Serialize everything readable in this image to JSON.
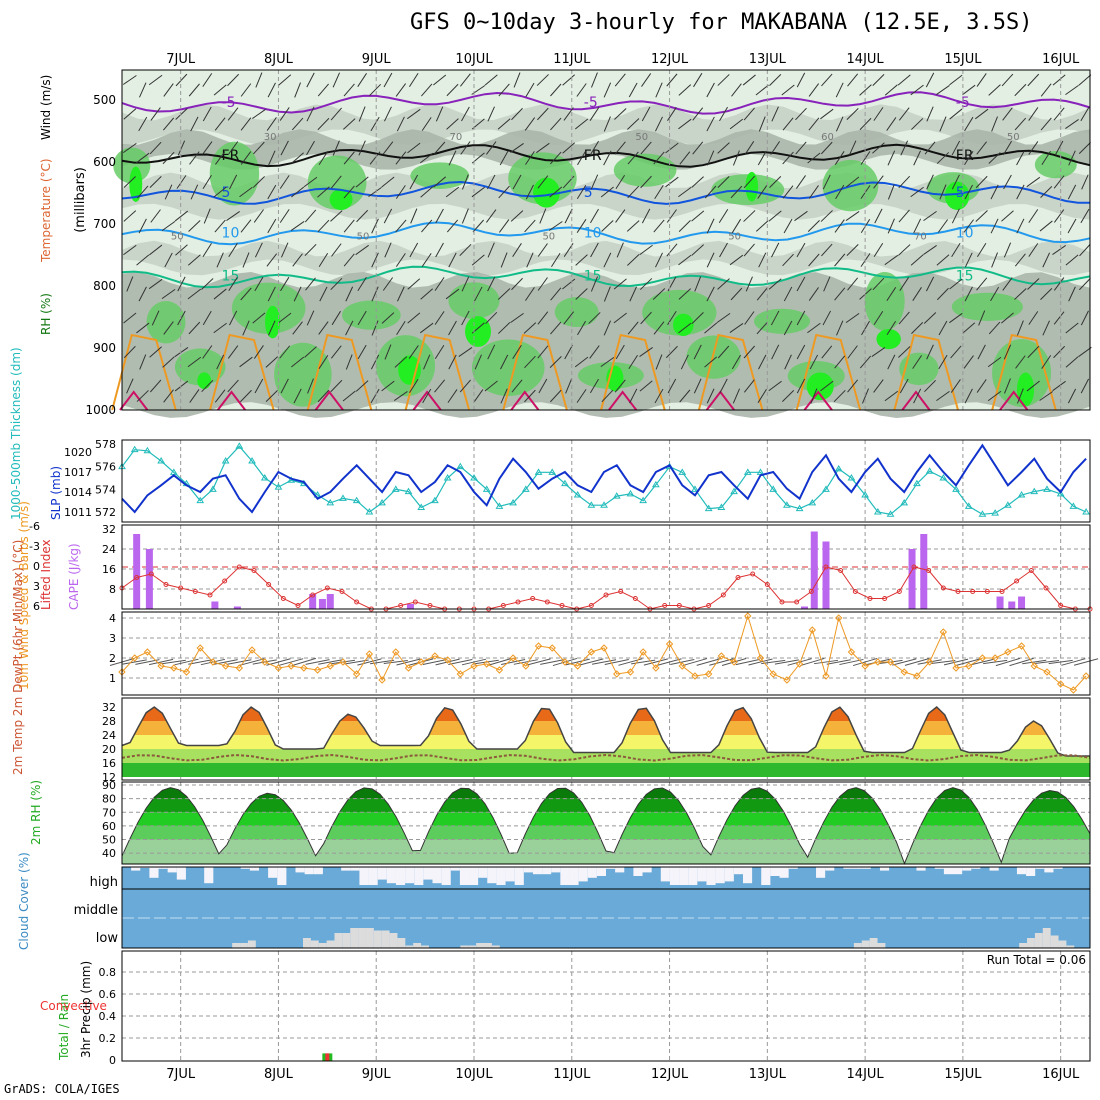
{
  "title": "GFS 0~10day 3-hourly for MAKABANA (12.5E, 3.5S)",
  "credit": "GrADS: COLA/IGES",
  "colors": {
    "rh_light": "#e2efe2",
    "rh_mid": "#c8d2c8",
    "rh_dark": "#abb6ab",
    "rh_green": "#66cc66",
    "rh_bright": "#22ee22",
    "temp_neg": "#8822bb",
    "temp_freeze": "#111111",
    "temp_5": "#1155dd",
    "temp_10": "#2299ee",
    "temp_15": "#11bb88",
    "temp_20": "#ee9922",
    "temp_25": "#cc1166",
    "slp": "#1133cc",
    "thickness": "#22bbbb",
    "cape": "#bb66ee",
    "li": "#dd3333",
    "wind": "#ee9922",
    "cloud": "#6aaad8",
    "cloud_gap": "#f6f4fb",
    "cloud_low": "#dcdcdc",
    "precip_rain": "#22bb22",
    "precip_conv": "#ee3333",
    "rh2m": "#22aa22"
  },
  "chart_data": [
    {
      "type": "contour",
      "panel": "upper-air",
      "x_ticks": [
        "7JUL",
        "8JUL",
        "9JUL",
        "10JUL",
        "11JUL",
        "12JUL",
        "13JUL",
        "14JUL",
        "15JUL",
        "16JUL"
      ],
      "ylabel": "(millibars)",
      "side_labels": [
        "RH (%)",
        "Temperature (°C)",
        "Wind (m/s)"
      ],
      "y_ticks": [
        500,
        600,
        700,
        800,
        900,
        1000
      ],
      "ylim": [
        1000,
        450
      ],
      "isotherms": [
        {
          "label": "-5",
          "value": -5,
          "color": "#8822bb",
          "level": 505
        },
        {
          "label": "FR",
          "value": 0,
          "color": "#111111",
          "level": 590
        },
        {
          "label": "5",
          "value": 5,
          "color": "#1155dd",
          "level": 650
        },
        {
          "label": "10",
          "value": 10,
          "color": "#2299ee",
          "level": 715
        },
        {
          "label": "15",
          "value": 15,
          "color": "#11bb88",
          "level": 785
        }
      ],
      "rh_labels": [
        "50",
        "30",
        "50",
        "70",
        "50",
        "50",
        "50",
        "60",
        "70",
        "50"
      ]
    },
    {
      "type": "line",
      "panel": "slp-thickness",
      "x": [
        6.4,
        6.53,
        6.66,
        6.8,
        6.93,
        7.06,
        7.2,
        7.33,
        7.46,
        7.6,
        7.73,
        7.86,
        8.0,
        8.13,
        8.26,
        8.4,
        8.53,
        8.66,
        8.8,
        8.93,
        9.06,
        9.2,
        9.33,
        9.46,
        9.6,
        9.73,
        9.86,
        10.0,
        10.13,
        10.26,
        10.4,
        10.53,
        10.66,
        10.8,
        10.93,
        11.06,
        11.2,
        11.33,
        11.46,
        11.6,
        11.73,
        11.86,
        12.0,
        12.13,
        12.26,
        12.4,
        12.53,
        12.66,
        12.8,
        12.93,
        13.06,
        13.2,
        13.33,
        13.46,
        13.6,
        13.73,
        13.86,
        14.0,
        14.13,
        14.26,
        14.4,
        14.53,
        14.66,
        14.8,
        14.93,
        15.06,
        15.2,
        15.33,
        15.46,
        15.6,
        15.73,
        15.86,
        16.0,
        16.13,
        16.26
      ],
      "series": [
        {
          "name": "SLP (mb)",
          "axis": "right",
          "values": [
            1013,
            1011,
            1013.5,
            1015,
            1016.5,
            1015,
            1014,
            1016,
            1016.5,
            1013,
            1011,
            1014,
            1017,
            1016,
            1015.5,
            1013,
            1014,
            1016,
            1018,
            1016,
            1014,
            1017,
            1016.5,
            1014,
            1015.5,
            1018,
            1017,
            1014,
            1012,
            1016,
            1019,
            1017,
            1014.5,
            1016,
            1017,
            1015,
            1014,
            1017,
            1018,
            1015,
            1014,
            1017,
            1018,
            1015,
            1013.5,
            1016.5,
            1017,
            1015,
            1013,
            1016.5,
            1017,
            1014.5,
            1013,
            1017,
            1019.5,
            1016,
            1014,
            1017,
            1019,
            1016,
            1014,
            1017,
            1019.5,
            1017,
            1015,
            1018,
            1021,
            1018,
            1015,
            1017,
            1019,
            1016,
            1014,
            1017,
            1019
          ]
        },
        {
          "name": "1000-500mb Thickness (dm)",
          "axis": "left",
          "values": [
            576,
            577.5,
            577.4,
            576.5,
            575.5,
            574.5,
            573,
            574,
            576.5,
            577.8,
            576.5,
            575,
            574.2,
            574.8,
            574.5,
            573.5,
            572.8,
            573.2,
            573,
            572,
            572.8,
            574,
            573.8,
            572.4,
            573,
            575,
            576,
            575,
            574,
            572.5,
            572.8,
            574,
            575.5,
            575.5,
            574.5,
            573.5,
            572.6,
            572.6,
            573.4,
            573.6,
            573,
            574.4,
            576,
            575.5,
            574,
            572.3,
            572.4,
            573.8,
            575.5,
            575.5,
            574,
            572.6,
            572.3,
            572.8,
            574,
            575.8,
            575,
            573.5,
            572,
            571.8,
            572.8,
            574.5,
            575.6,
            575,
            574,
            572.5,
            571.8,
            571.9,
            572.6,
            573.5,
            573.8,
            574,
            573.6,
            572.5,
            572
          ]
        }
      ],
      "y_left_ticks": [
        572,
        574,
        576,
        578
      ],
      "y_right_ticks": [
        1011,
        1014,
        1017,
        1020
      ],
      "ylabel_left": "1000-500mb Thickness (dm)",
      "ylabel_right": "SLP (mb)"
    },
    {
      "type": "bar",
      "panel": "cape-li",
      "ylabel_left": "Lifted Index",
      "ylabel_right": "CAPE (J/kg)",
      "y_left_ticks": [
        "-6",
        "-3",
        "0",
        "3",
        "6"
      ],
      "y_right_ticks": [
        "8",
        "16",
        "24",
        "32"
      ],
      "cape": [
        {
          "day": 6.55,
          "value": 30
        },
        {
          "day": 6.68,
          "value": 24
        },
        {
          "day": 7.35,
          "value": 3
        },
        {
          "day": 7.58,
          "value": 1
        },
        {
          "day": 8.35,
          "value": 6
        },
        {
          "day": 8.45,
          "value": 4
        },
        {
          "day": 8.53,
          "value": 6
        },
        {
          "day": 9.35,
          "value": 2
        },
        {
          "day": 13.38,
          "value": 1
        },
        {
          "day": 13.48,
          "value": 31
        },
        {
          "day": 13.6,
          "value": 27
        },
        {
          "day": 14.48,
          "value": 24
        },
        {
          "day": 14.6,
          "value": 30
        },
        {
          "day": 15.38,
          "value": 5
        },
        {
          "day": 15.5,
          "value": 3
        },
        {
          "day": 15.6,
          "value": 5
        }
      ],
      "lifted_index_x": [
        6.4,
        6.55,
        6.7,
        6.85,
        7.0,
        7.15,
        7.3,
        7.45,
        7.6,
        7.75,
        7.9,
        8.05,
        8.2,
        8.35,
        8.5,
        8.65,
        8.8,
        8.95,
        9.1,
        9.25,
        9.4,
        9.55,
        9.7,
        9.85,
        10.0,
        10.15,
        10.3,
        10.45,
        10.6,
        10.75,
        10.9,
        11.05,
        11.2,
        11.35,
        11.5,
        11.65,
        11.8,
        11.95,
        12.1,
        12.25,
        12.4,
        12.55,
        12.7,
        12.85,
        13.0,
        13.15,
        13.3,
        13.45,
        13.6,
        13.75,
        13.9,
        14.05,
        14.2,
        14.35,
        14.5,
        14.65,
        14.8,
        14.95,
        15.1,
        15.25,
        15.4,
        15.55,
        15.7,
        15.85,
        16.0,
        16.15,
        16.3
      ],
      "lifted_index": [
        3,
        1.5,
        1,
        2.5,
        3,
        3.5,
        4,
        2,
        0,
        0.5,
        2.5,
        4.5,
        5.5,
        4,
        3,
        3.5,
        5,
        6,
        6,
        5.5,
        5,
        5.5,
        6,
        6,
        6,
        6,
        5.5,
        5,
        4.5,
        5,
        5.5,
        6,
        5.5,
        4,
        3.5,
        4.5,
        6,
        5.5,
        5.5,
        6,
        5.5,
        4,
        1.5,
        1,
        2.5,
        5,
        5,
        3.5,
        0,
        0.5,
        3.5,
        4.5,
        4.5,
        3.5,
        0,
        0.5,
        3,
        3.5,
        3.5,
        3.5,
        3.5,
        2,
        0.5,
        3,
        5.5,
        6,
        6
      ]
    },
    {
      "type": "line",
      "panel": "wind10m",
      "ylabel": "10m Wind Speed & Barbs (m/s)",
      "y_ticks": [
        1,
        2,
        3,
        4
      ],
      "x": [
        6.4,
        6.53,
        6.66,
        6.8,
        6.93,
        7.06,
        7.2,
        7.33,
        7.46,
        7.6,
        7.73,
        7.86,
        8.0,
        8.13,
        8.26,
        8.4,
        8.53,
        8.66,
        8.8,
        8.93,
        9.06,
        9.2,
        9.33,
        9.46,
        9.6,
        9.73,
        9.86,
        10.0,
        10.13,
        10.26,
        10.4,
        10.53,
        10.66,
        10.8,
        10.93,
        11.06,
        11.2,
        11.33,
        11.46,
        11.6,
        11.73,
        11.86,
        12.0,
        12.13,
        12.26,
        12.4,
        12.53,
        12.66,
        12.8,
        12.93,
        13.06,
        13.2,
        13.33,
        13.46,
        13.6,
        13.73,
        13.86,
        14.0,
        14.13,
        14.26,
        14.4,
        14.53,
        14.66,
        14.8,
        14.93,
        15.06,
        15.2,
        15.33,
        15.46,
        15.6,
        15.73,
        15.86,
        16.0,
        16.13,
        16.26
      ],
      "values": [
        1.3,
        2,
        2.3,
        1.6,
        1.5,
        1.3,
        2.5,
        1.8,
        1.6,
        1.5,
        2.4,
        1.8,
        1.5,
        1.6,
        1.5,
        1.4,
        1.6,
        1.8,
        1.2,
        2.2,
        0.9,
        2.3,
        1.5,
        1.8,
        2.1,
        1.9,
        1.2,
        1.6,
        1.7,
        1.4,
        2,
        1.6,
        2.6,
        2.5,
        1.8,
        1.6,
        2.3,
        2.5,
        1.2,
        1.3,
        2.3,
        1.5,
        2.7,
        1.6,
        1.1,
        1.2,
        2.1,
        1.8,
        4.1,
        2,
        1.2,
        0.9,
        1.7,
        3.4,
        1.1,
        4,
        2.3,
        1.6,
        1.8,
        1.8,
        1.3,
        1.1,
        1.8,
        3.3,
        1.5,
        1.6,
        2,
        2,
        2.3,
        2.6,
        1.6,
        1.3,
        0.7,
        0.4,
        1.1
      ]
    },
    {
      "type": "area",
      "panel": "temp2m",
      "ylabel": "2m Temp 2m DewPt (6hr Min/Max) (°C)",
      "y_ticks": [
        12,
        16,
        20,
        24,
        28,
        32
      ],
      "daily_max": [
        32,
        32,
        30,
        32,
        32,
        32,
        32,
        32,
        32,
        28
      ],
      "daily_min": [
        21,
        20,
        21,
        20,
        19,
        19,
        19,
        19,
        19,
        18
      ],
      "dewpoint": [
        18,
        18,
        17.5,
        17.5,
        17.5,
        17.5,
        17.5,
        17.5,
        17.5,
        17.5
      ]
    },
    {
      "type": "area",
      "panel": "rh2m",
      "ylabel": "2m RH (%)",
      "y_ticks": [
        40,
        50,
        60,
        70,
        80,
        90
      ],
      "daily_max": [
        88,
        84,
        88,
        88,
        88,
        88,
        88,
        88,
        88,
        86
      ],
      "daily_min": [
        38,
        35,
        37,
        33,
        33,
        35,
        35,
        35,
        32,
        40
      ]
    },
    {
      "type": "bar",
      "panel": "cloud-cover",
      "ylabel": "Cloud Cover (%)",
      "levels": [
        "high",
        "middle",
        "low"
      ],
      "high_gaps": [
        0,
        20,
        5,
        60,
        10,
        30,
        70,
        0,
        0,
        90,
        0,
        0,
        0,
        10,
        20,
        0,
        60,
        100,
        0,
        30,
        40,
        40,
        0,
        0,
        20,
        20,
        100,
        100,
        70,
        90,
        100,
        90,
        100,
        70,
        90,
        100,
        20,
        100,
        100,
        60,
        90,
        100,
        80,
        100,
        30,
        40,
        40,
        30,
        100,
        100,
        80,
        60,
        50,
        10,
        30,
        0,
        50,
        30,
        0,
        80,
        100,
        100,
        100,
        80,
        100,
        90,
        80,
        40,
        90,
        0,
        100,
        50,
        60,
        10,
        0,
        0,
        60,
        20,
        0,
        10,
        10,
        10,
        0,
        20,
        0,
        0,
        0,
        20,
        0,
        10,
        40,
        40,
        20,
        10,
        0,
        20,
        0,
        0,
        40,
        50,
        10,
        30,
        10,
        0,
        0,
        0
      ],
      "low_cover": [
        0,
        0,
        0,
        0,
        0,
        0,
        0,
        0,
        0,
        0,
        0,
        0,
        0,
        0,
        20,
        20,
        30,
        0,
        0,
        0,
        0,
        0,
        0,
        40,
        30,
        20,
        30,
        60,
        60,
        80,
        80,
        80,
        70,
        70,
        60,
        40,
        10,
        20,
        10,
        0,
        0,
        0,
        0,
        10,
        10,
        20,
        20,
        10,
        0,
        0,
        0,
        0,
        0,
        0,
        0,
        0,
        0,
        0,
        0,
        0,
        0,
        0,
        0,
        0,
        0,
        0,
        0,
        0,
        0,
        0,
        0,
        0,
        0,
        0,
        0,
        0,
        0,
        0,
        0,
        0,
        0,
        0,
        0,
        0,
        0,
        0,
        0,
        0,
        0,
        0,
        0,
        0,
        0,
        20,
        30,
        40,
        20,
        0,
        0,
        0,
        0,
        0,
        0,
        0,
        0,
        0,
        0,
        0,
        0,
        0,
        0,
        0,
        0,
        0,
        20,
        40,
        60,
        80,
        50,
        30,
        10,
        0,
        0
      ]
    },
    {
      "type": "bar",
      "panel": "precip",
      "ylabel_left": "Total / Rain",
      "ylabel_conv": "Convective",
      "ylabel": "3hr Precip (mm)",
      "y_ticks": [
        "0",
        "0.2",
        "0.4",
        "0.6",
        "0.8"
      ],
      "ylim": [
        0,
        0.9
      ],
      "run_total_label": "Run Total = 0.06",
      "bars": [
        {
          "day": 8.5,
          "total": 0.06,
          "convective": 0.06
        }
      ],
      "x_ticks": [
        "7JUL",
        "8JUL",
        "9JUL",
        "10JUL",
        "11JUL",
        "12JUL",
        "13JUL",
        "14JUL",
        "15JUL",
        "16JUL"
      ]
    }
  ]
}
